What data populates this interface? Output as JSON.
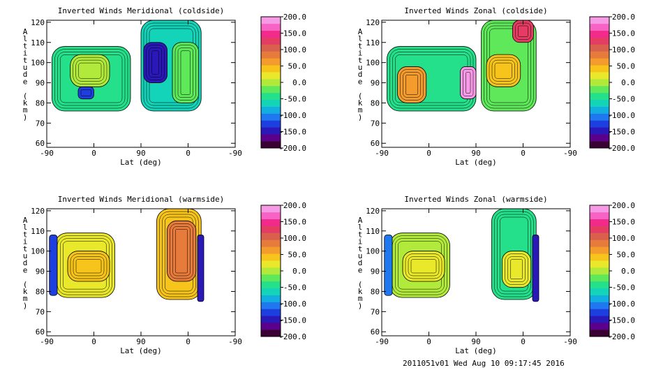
{
  "footer": "2011051v01 Wed Aug 10 09:17:45 2016",
  "colorbar": {
    "labels": [
      "200.0",
      "150.0",
      "100.0",
      "50.0",
      "0.0",
      "-50.0",
      "-100.0",
      "-150.0",
      "-200.0"
    ],
    "range": [
      -200,
      200
    ],
    "colors": [
      "#3a0033",
      "#5a008a",
      "#2a18b8",
      "#1e3fe0",
      "#1f78f0",
      "#12aee0",
      "#13d3b8",
      "#25e08a",
      "#5ee85a",
      "#b2ea3c",
      "#e9e82a",
      "#f7c41c",
      "#f39b2c",
      "#e77b3c",
      "#d8604c",
      "#e43c62",
      "#f22a8a",
      "#f763c4",
      "#f79ae6"
    ]
  },
  "chart_data": [
    {
      "type": "contour",
      "title": "Inverted Winds Meridional (coldside)",
      "xlabel": "Lat (deg)",
      "ylabel": "Altitude (km)",
      "xticks": [
        "-90",
        "0",
        "90",
        "0",
        "-90"
      ],
      "yticks": [
        "60",
        "70",
        "80",
        "90",
        "100",
        "110",
        "120"
      ],
      "ylim": [
        58,
        121
      ],
      "zlim": [
        -200,
        200
      ],
      "regions": [
        {
          "x": [
            -80,
            70
          ],
          "y": [
            76,
            108
          ],
          "level": -50
        },
        {
          "x": [
            -45,
            30
          ],
          "y": [
            88,
            104
          ],
          "level": 5
        },
        {
          "x": [
            -30,
            0
          ],
          "y": [
            82,
            88
          ],
          "level": -120
        },
        {
          "x": [
            90,
            205
          ],
          "y": [
            76,
            121
          ],
          "level": -60
        },
        {
          "x": [
            95,
            140
          ],
          "y": [
            90,
            110
          ],
          "level": -150
        },
        {
          "x": [
            150,
            200
          ],
          "y": [
            80,
            110
          ],
          "level": -20
        }
      ]
    },
    {
      "type": "contour",
      "title": "Inverted Winds Zonal (coldside)",
      "xlabel": "Lat (deg)",
      "ylabel": "Altitude (km)",
      "xticks": [
        "-90",
        "0",
        "90",
        "0",
        "-90"
      ],
      "yticks": [
        "60",
        "70",
        "80",
        "90",
        "100",
        "110",
        "120"
      ],
      "ylim": [
        58,
        121
      ],
      "zlim": [
        -200,
        200
      ],
      "regions": [
        {
          "x": [
            -80,
            90
          ],
          "y": [
            76,
            108
          ],
          "level": -40
        },
        {
          "x": [
            -60,
            -5
          ],
          "y": [
            80,
            98
          ],
          "level": 60
        },
        {
          "x": [
            60,
            90
          ],
          "y": [
            82,
            98
          ],
          "level": 180
        },
        {
          "x": [
            100,
            205
          ],
          "y": [
            76,
            121
          ],
          "level": -30
        },
        {
          "x": [
            110,
            175
          ],
          "y": [
            88,
            104
          ],
          "level": 40
        },
        {
          "x": [
            160,
            200
          ],
          "y": [
            110,
            121
          ],
          "level": 120
        }
      ]
    },
    {
      "type": "contour",
      "title": "Inverted Winds Meridional (warmside)",
      "xlabel": "Lat (deg)",
      "ylabel": "Altitude (km)",
      "xticks": [
        "-90",
        "0",
        "90",
        "0",
        "-90"
      ],
      "yticks": [
        "60",
        "70",
        "80",
        "90",
        "100",
        "110",
        "120"
      ],
      "ylim": [
        58,
        121
      ],
      "zlim": [
        -200,
        200
      ],
      "regions": [
        {
          "x": [
            -75,
            40
          ],
          "y": [
            77,
            109
          ],
          "level": 20
        },
        {
          "x": [
            -50,
            30
          ],
          "y": [
            85,
            100
          ],
          "level": 45
        },
        {
          "x": [
            -85,
            -70
          ],
          "y": [
            78,
            108
          ],
          "level": -120
        },
        {
          "x": [
            120,
            205
          ],
          "y": [
            76,
            121
          ],
          "level": 40
        },
        {
          "x": [
            140,
            195
          ],
          "y": [
            85,
            115
          ],
          "level": 80
        },
        {
          "x": [
            198,
            210
          ],
          "y": [
            75,
            108
          ],
          "level": -150
        }
      ]
    },
    {
      "type": "contour",
      "title": "Inverted Winds Zonal (warmside)",
      "xlabel": "Lat (deg)",
      "ylabel": "Altitude (km)",
      "xticks": [
        "-90",
        "0",
        "90",
        "0",
        "-90"
      ],
      "yticks": [
        "60",
        "70",
        "80",
        "90",
        "100",
        "110",
        "120"
      ],
      "ylim": [
        58,
        121
      ],
      "zlim": [
        -200,
        200
      ],
      "regions": [
        {
          "x": [
            -75,
            40
          ],
          "y": [
            77,
            109
          ],
          "level": -10
        },
        {
          "x": [
            -50,
            30
          ],
          "y": [
            85,
            100
          ],
          "level": 15
        },
        {
          "x": [
            -85,
            -70
          ],
          "y": [
            78,
            108
          ],
          "level": -110
        },
        {
          "x": [
            120,
            205
          ],
          "y": [
            76,
            121
          ],
          "level": -35
        },
        {
          "x": [
            140,
            195
          ],
          "y": [
            82,
            100
          ],
          "level": 20
        },
        {
          "x": [
            198,
            210
          ],
          "y": [
            75,
            108
          ],
          "level": -140
        }
      ]
    }
  ]
}
